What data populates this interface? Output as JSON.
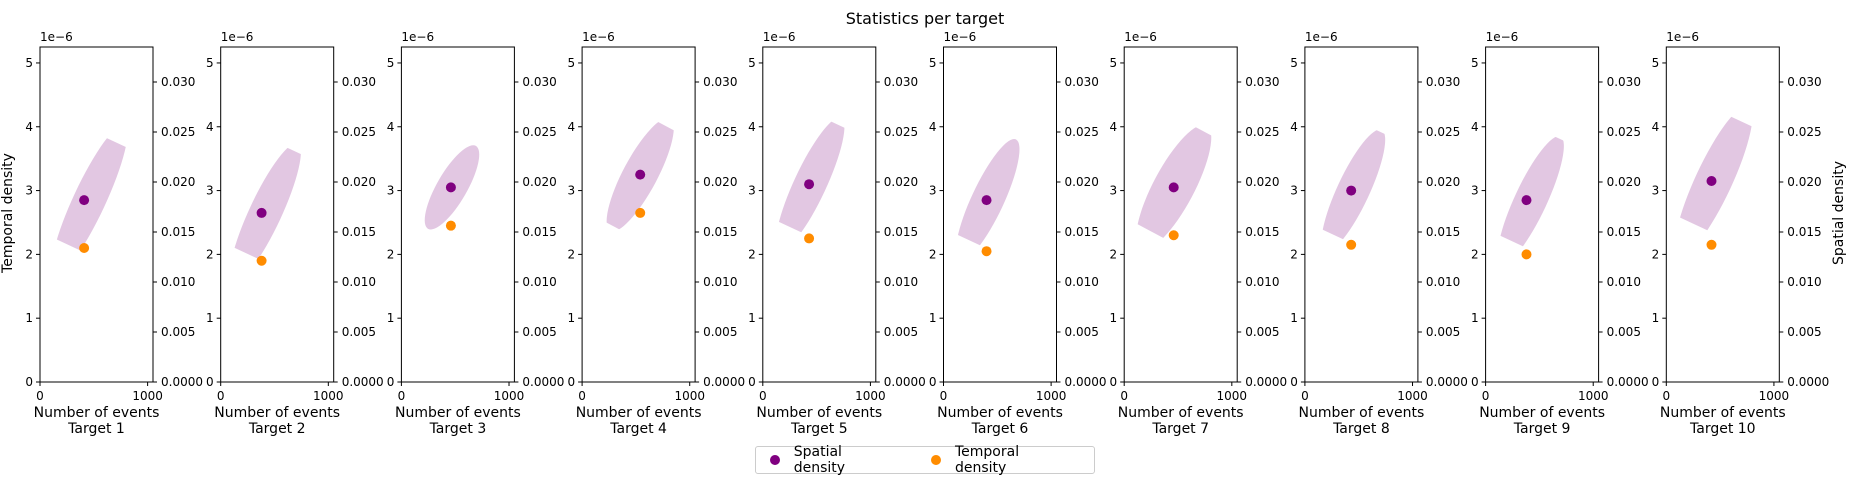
{
  "title": "Statistics per target",
  "legend": {
    "items": [
      {
        "label": "Spatial density",
        "color": "#800080"
      },
      {
        "label": "Temporal density",
        "color": "#ff8c00"
      }
    ]
  },
  "chart_data": {
    "type": "scatter",
    "title": "Statistics per target",
    "xlabel": "Number of events",
    "ylabel_left": "Temporal density",
    "ylabel_right": "Spatial density",
    "left_axis_multiplier": "1e−6",
    "xlim": [
      0,
      1050
    ],
    "ylim_left": [
      0,
      5.25
    ],
    "ylim_right": [
      0,
      0.0335
    ],
    "x_ticks": [
      "0",
      "1000"
    ],
    "y_ticks_left": [
      "0",
      "1",
      "2",
      "3",
      "4",
      "5"
    ],
    "y_ticks_right": [
      "0.0000",
      "0.005",
      "0.010",
      "0.015",
      "0.020",
      "0.025",
      "0.030"
    ],
    "ellipse_color": "#d8b4d8",
    "panels": [
      {
        "label": "Target 1",
        "spatial": {
          "x": 410,
          "y": 2.85
        },
        "temporal": {
          "x": 410,
          "y": 2.1
        },
        "ellipse": {
          "cx": 460,
          "cy": 2.85,
          "rx": 150,
          "ry": 2.6,
          "angle": 65
        }
      },
      {
        "label": "Target 2",
        "spatial": {
          "x": 380,
          "y": 2.65
        },
        "temporal": {
          "x": 380,
          "y": 1.9
        },
        "ellipse": {
          "cx": 415,
          "cy": 2.65,
          "rx": 150,
          "ry": 2.4,
          "angle": 65
        }
      },
      {
        "label": "Target 3",
        "spatial": {
          "x": 460,
          "y": 3.05
        },
        "temporal": {
          "x": 460,
          "y": 2.45
        },
        "ellipse": {
          "cx": 470,
          "cy": 3.05,
          "rx": 140,
          "ry": 1.5,
          "angle": 60
        }
      },
      {
        "label": "Target 4",
        "spatial": {
          "x": 540,
          "y": 3.25
        },
        "temporal": {
          "x": 540,
          "y": 2.65
        },
        "ellipse": {
          "cx": 540,
          "cy": 3.25,
          "rx": 160,
          "ry": 2.0,
          "angle": 62
        }
      },
      {
        "label": "Target 5",
        "spatial": {
          "x": 430,
          "y": 3.1
        },
        "temporal": {
          "x": 430,
          "y": 2.25
        },
        "ellipse": {
          "cx": 440,
          "cy": 3.1,
          "rx": 150,
          "ry": 2.3,
          "angle": 65
        }
      },
      {
        "label": "Target 6",
        "spatial": {
          "x": 400,
          "y": 2.85
        },
        "temporal": {
          "x": 400,
          "y": 2.05
        },
        "ellipse": {
          "cx": 410,
          "cy": 2.85,
          "rx": 150,
          "ry": 2.1,
          "angle": 65
        }
      },
      {
        "label": "Target 7",
        "spatial": {
          "x": 460,
          "y": 3.05
        },
        "temporal": {
          "x": 460,
          "y": 2.3
        },
        "ellipse": {
          "cx": 460,
          "cy": 3.05,
          "rx": 190,
          "ry": 2.2,
          "angle": 62
        }
      },
      {
        "label": "Target 8",
        "spatial": {
          "x": 430,
          "y": 3.0
        },
        "temporal": {
          "x": 430,
          "y": 2.15
        },
        "ellipse": {
          "cx": 450,
          "cy": 3.0,
          "rx": 150,
          "ry": 2.1,
          "angle": 65
        }
      },
      {
        "label": "Target 9",
        "spatial": {
          "x": 380,
          "y": 2.85
        },
        "temporal": {
          "x": 380,
          "y": 2.0
        },
        "ellipse": {
          "cx": 420,
          "cy": 2.85,
          "rx": 150,
          "ry": 2.2,
          "angle": 65
        }
      },
      {
        "label": "Target 10",
        "spatial": {
          "x": 420,
          "y": 3.15
        },
        "temporal": {
          "x": 420,
          "y": 2.15
        },
        "ellipse": {
          "cx": 440,
          "cy": 3.15,
          "rx": 170,
          "ry": 2.6,
          "angle": 65
        }
      }
    ]
  }
}
